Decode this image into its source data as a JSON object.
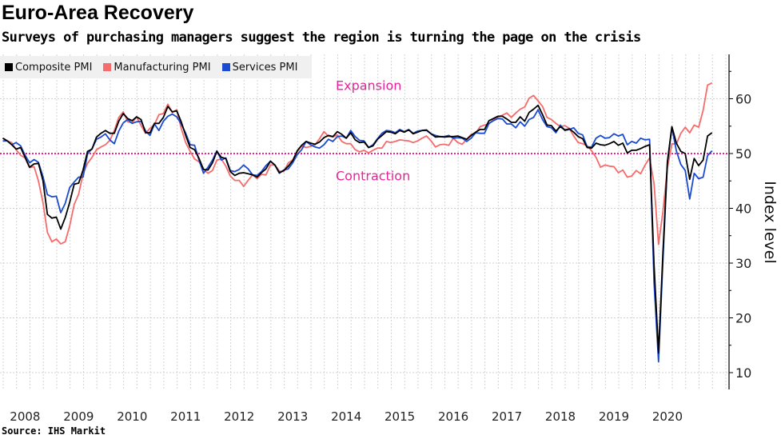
{
  "title": "Euro-Area Recovery",
  "subtitle": "Surveys of purchasing managers suggest the region is turning the page on the crisis",
  "source": "Source: IHS Markit",
  "chart_data": {
    "type": "line",
    "x_start": "2008-01",
    "x_end": "2021-04",
    "frequency": "monthly",
    "xlabel": "",
    "ylabel": "Index level",
    "ylim": [
      7,
      68
    ],
    "y_ticks": [
      10,
      20,
      30,
      40,
      50,
      60
    ],
    "x_tick_labels": [
      "2008",
      "2009",
      "2010",
      "2011",
      "2012",
      "2013",
      "2014",
      "2015",
      "2016",
      "2017",
      "2018",
      "2019",
      "2020"
    ],
    "grid": true,
    "legend_position": "top-left",
    "reference_line": {
      "value": 50,
      "color": "#e8239a"
    },
    "annotations": [
      {
        "text": "Expansion",
        "value": 62.5,
        "color": "#e8239a"
      },
      {
        "text": "Contraction",
        "value": 46,
        "color": "#e8239a"
      }
    ],
    "series": [
      {
        "name": "Composite PMI",
        "color": "#000000",
        "values": [
          52.8,
          52.3,
          51.6,
          50.8,
          51.1,
          49.3,
          47.5,
          48.1,
          48.2,
          45.1,
          38.9,
          38.2,
          38.4,
          36.2,
          38.3,
          41.1,
          44.4,
          44.6,
          47.0,
          50.4,
          50.8,
          53.0,
          53.7,
          54.2,
          53.7,
          53.7,
          55.9,
          57.3,
          56.4,
          56.0,
          56.7,
          56.2,
          53.8,
          53.8,
          55.5,
          55.5,
          56.6,
          58.6,
          57.6,
          57.8,
          55.8,
          53.3,
          51.1,
          50.7,
          49.1,
          47.1,
          47.0,
          48.3,
          50.4,
          49.3,
          49.1,
          46.7,
          46.0,
          46.4,
          46.5,
          46.3,
          46.1,
          45.7,
          46.5,
          47.2,
          48.6,
          47.9,
          46.5,
          46.9,
          47.7,
          48.7,
          50.5,
          51.5,
          52.2,
          51.9,
          51.7,
          52.1,
          52.9,
          53.3,
          53.1,
          54.0,
          53.5,
          52.8,
          53.8,
          52.5,
          52.0,
          52.1,
          51.1,
          51.4,
          52.6,
          53.3,
          54.0,
          53.9,
          53.6,
          54.2,
          53.9,
          54.3,
          53.6,
          53.9,
          54.2,
          54.3,
          53.6,
          53.0,
          53.1,
          53.0,
          53.1,
          53.1,
          53.2,
          52.9,
          52.6,
          53.3,
          53.9,
          54.4,
          54.4,
          56.0,
          56.4,
          56.8,
          56.8,
          56.3,
          55.7,
          55.7,
          56.7,
          55.9,
          57.5,
          58.1,
          58.8,
          57.1,
          55.2,
          55.1,
          54.1,
          54.9,
          54.3,
          54.5,
          53.9,
          53.1,
          52.7,
          51.1,
          51.0,
          51.9,
          51.6,
          51.5,
          51.8,
          52.2,
          51.5,
          51.9,
          50.1,
          50.6,
          50.6,
          50.9,
          51.3,
          51.6,
          29.7,
          13.6,
          31.9,
          48.5,
          54.9,
          51.9,
          50.4,
          50.0,
          45.3,
          49.1,
          47.8,
          48.8,
          53.2,
          53.8
        ]
      },
      {
        "name": "Manufacturing PMI",
        "color": "#f66b6b",
        "values": [
          52.8,
          52.3,
          52.0,
          50.7,
          49.7,
          49.2,
          47.4,
          47.6,
          45.0,
          41.1,
          35.6,
          33.9,
          34.4,
          33.5,
          33.9,
          36.8,
          40.7,
          42.6,
          46.3,
          48.2,
          49.3,
          50.7,
          51.2,
          51.6,
          52.4,
          54.2,
          56.6,
          57.6,
          55.8,
          55.6,
          56.7,
          55.1,
          53.7,
          54.6,
          55.3,
          57.1,
          57.3,
          59.0,
          57.5,
          58.0,
          54.6,
          52.0,
          50.4,
          49.0,
          48.5,
          47.1,
          46.4,
          46.9,
          48.8,
          49.0,
          47.7,
          45.9,
          45.1,
          45.1,
          44.0,
          45.1,
          46.1,
          45.4,
          46.2,
          46.1,
          47.9,
          47.9,
          46.8,
          46.7,
          48.3,
          48.8,
          50.3,
          51.4,
          51.1,
          51.3,
          51.6,
          52.7,
          54.0,
          53.2,
          53.0,
          53.4,
          52.2,
          51.8,
          51.8,
          50.7,
          50.3,
          50.6,
          50.1,
          50.6,
          51.0,
          51.0,
          52.2,
          52.0,
          52.2,
          52.5,
          52.4,
          52.3,
          52.0,
          52.3,
          52.8,
          53.2,
          52.3,
          51.2,
          51.6,
          51.7,
          51.5,
          52.8,
          52.0,
          51.7,
          52.6,
          53.5,
          53.7,
          54.9,
          55.2,
          55.4,
          56.2,
          56.7,
          57.0,
          57.4,
          56.6,
          57.4,
          58.1,
          58.5,
          60.1,
          60.6,
          59.6,
          58.6,
          56.6,
          56.2,
          55.5,
          54.9,
          55.1,
          54.6,
          53.2,
          52.0,
          51.8,
          51.4,
          50.5,
          49.3,
          47.5,
          47.9,
          47.7,
          47.6,
          46.5,
          47.0,
          45.7,
          45.9,
          46.9,
          46.3,
          47.9,
          49.2,
          44.5,
          33.4,
          39.4,
          47.4,
          51.8,
          51.7,
          53.7,
          54.8,
          53.8,
          55.2,
          54.8,
          57.9,
          62.5,
          62.9
        ]
      },
      {
        "name": "Services PMI",
        "color": "#1a4bd0",
        "values": [
          52.3,
          52.3,
          51.6,
          52.0,
          51.4,
          49.7,
          48.3,
          48.9,
          48.4,
          45.8,
          42.5,
          42.1,
          42.2,
          39.2,
          40.9,
          43.8,
          44.8,
          45.7,
          45.7,
          49.9,
          50.9,
          52.6,
          53.0,
          53.6,
          52.5,
          51.8,
          54.1,
          55.6,
          56.2,
          55.5,
          55.8,
          55.9,
          54.1,
          53.3,
          55.4,
          54.2,
          55.9,
          56.8,
          57.2,
          56.7,
          55.4,
          53.7,
          51.6,
          51.5,
          48.8,
          46.4,
          47.5,
          48.8,
          50.5,
          48.8,
          49.2,
          46.9,
          46.7,
          47.1,
          47.9,
          47.2,
          46.1,
          46.0,
          46.7,
          47.8,
          48.6,
          47.9,
          46.4,
          47.0,
          47.2,
          48.3,
          49.8,
          50.7,
          52.2,
          51.6,
          51.2,
          51.0,
          51.6,
          52.6,
          52.2,
          53.1,
          53.2,
          52.8,
          54.2,
          53.1,
          52.4,
          52.3,
          51.1,
          51.6,
          52.7,
          53.7,
          54.2,
          54.1,
          53.8,
          54.4,
          54.0,
          54.4,
          53.7,
          54.1,
          54.2,
          54.2,
          53.6,
          53.3,
          53.1,
          53.1,
          53.3,
          52.8,
          52.9,
          52.8,
          52.2,
          52.8,
          53.8,
          53.7,
          53.7,
          55.5,
          56.0,
          56.4,
          56.3,
          55.4,
          55.4,
          54.7,
          55.8,
          55.0,
          56.2,
          56.6,
          58.0,
          56.2,
          54.9,
          54.7,
          53.8,
          55.2,
          54.2,
          54.4,
          54.7,
          53.7,
          53.4,
          51.2,
          51.2,
          52.8,
          53.3,
          52.8,
          52.9,
          53.6,
          53.2,
          53.5,
          51.6,
          52.2,
          51.9,
          52.8,
          52.5,
          52.6,
          26.4,
          12.0,
          30.5,
          48.3,
          54.7,
          50.5,
          48.0,
          46.9,
          41.7,
          46.4,
          45.4,
          45.7,
          49.6,
          50.5
        ]
      }
    ]
  }
}
